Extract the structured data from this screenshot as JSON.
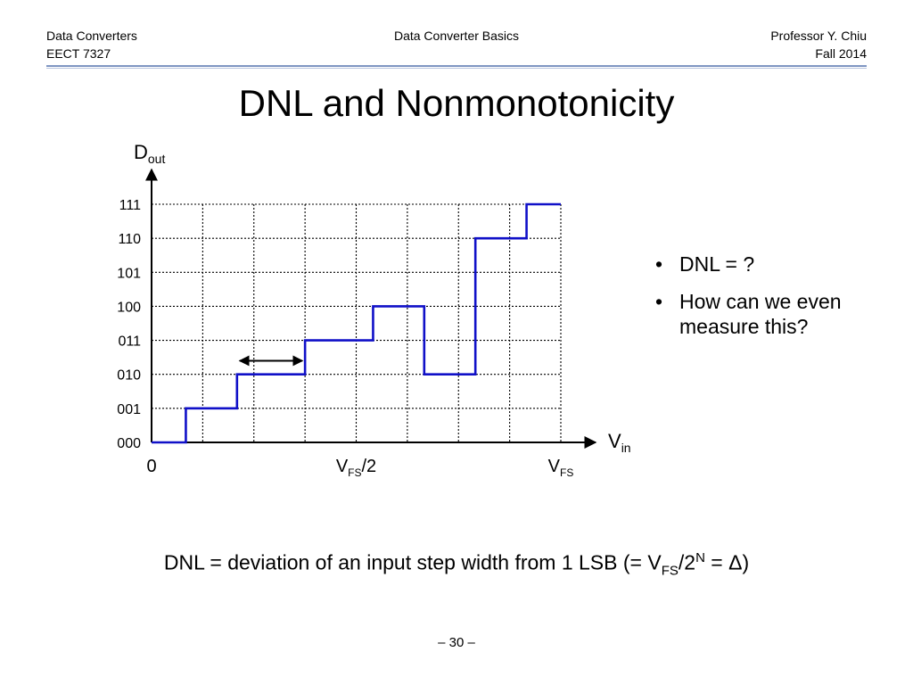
{
  "header": {
    "left_line1": "Data Converters",
    "left_line2": "EECT 7327",
    "center": "Data Converter Basics",
    "right_line1": "Professor Y. Chiu",
    "right_line2": "Fall 2014"
  },
  "title": "DNL and Nonmonotonicity",
  "chart_data": {
    "type": "line",
    "y_axis_label": {
      "main": "D",
      "sub": "out"
    },
    "x_axis_label": {
      "main": "V",
      "sub": "in"
    },
    "y_tick_labels": [
      "000",
      "001",
      "010",
      "011",
      "100",
      "101",
      "110",
      "111"
    ],
    "x_tick_labels": [
      {
        "x": 0,
        "main": "0",
        "sub": "",
        "tail": ""
      },
      {
        "x": 4,
        "main": "V",
        "sub": "FS",
        "tail": "/2"
      },
      {
        "x": 8,
        "main": "V",
        "sub": "FS",
        "tail": ""
      }
    ],
    "xlim": [
      0,
      8
    ],
    "ylim": [
      0,
      7
    ],
    "grid": true,
    "grid_style": "dotted",
    "series_color": "#1010c8",
    "staircase": {
      "x_transitions": [
        0.67,
        1.67,
        3.0,
        4.33,
        5.33,
        6.33,
        7.33
      ],
      "levels": [
        0,
        1,
        2,
        3,
        4,
        2,
        6,
        7
      ],
      "x_start": 0,
      "x_end": 8
    },
    "width_marker": {
      "x_from": 1.67,
      "x_to": 3.0,
      "y": 2.4,
      "style": "double-arrow"
    }
  },
  "bullets": [
    "DNL = ?",
    "How can we even measure this?"
  ],
  "bullet_marker": "•",
  "formula": {
    "part1": "DNL = deviation of an input step width from 1 LSB (= V",
    "sub": "FS",
    "part2": "/2",
    "sup": "N",
    "part3": " = Δ)"
  },
  "page_number": "– 30 –"
}
